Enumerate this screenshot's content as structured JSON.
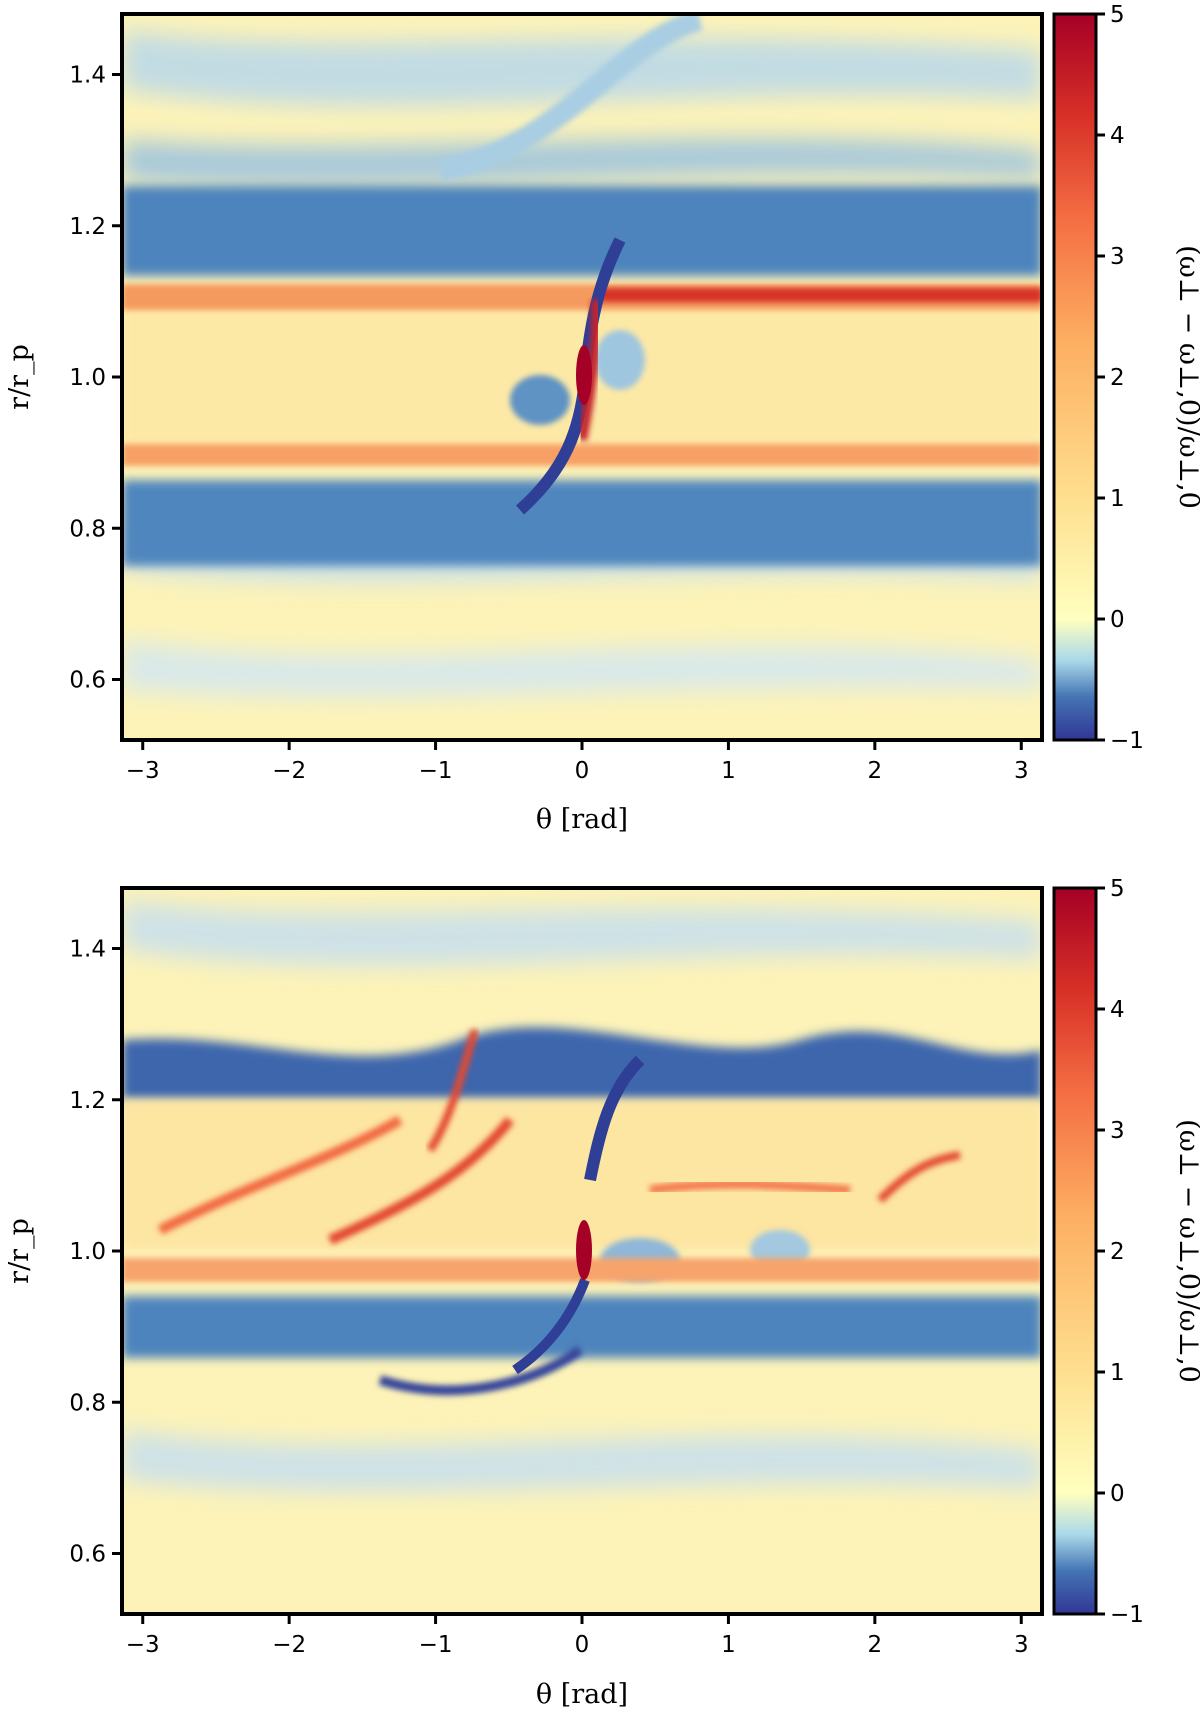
{
  "chart_data": [
    {
      "type": "heatmap",
      "panel": "top",
      "title": "",
      "xlabel": "θ [rad]",
      "ylabel": "r/r_p",
      "xlim": [
        -3.14159,
        3.14159
      ],
      "ylim": [
        0.52,
        1.48
      ],
      "xticks": [
        -3,
        -2,
        -1,
        0,
        1,
        2,
        3
      ],
      "xtick_labels": [
        "−3",
        "−2",
        "−1",
        "0",
        "1",
        "2",
        "3"
      ],
      "yticks": [
        0.6,
        0.8,
        1.0,
        1.2,
        1.4
      ],
      "ytick_labels": [
        "0.6",
        "0.8",
        "1.0",
        "1.2",
        "1.4"
      ],
      "colorbar": {
        "label": "(ω⊥ − ω⊥,0)/ω⊥,0",
        "range": [
          -1,
          5
        ],
        "ticks": [
          -1,
          0,
          1,
          2,
          3,
          4,
          5
        ],
        "tick_labels": [
          "−1",
          "0",
          "1",
          "2",
          "3",
          "4",
          "5"
        ],
        "colormap": "RdYlBu_r (diverging, centered at 0)",
        "colors": {
          "low": "#313695",
          "mid": "#ffffbf",
          "high": "#a50026"
        }
      },
      "features": [
        {
          "name": "outer ring",
          "r": 1.11,
          "value": 2.6,
          "theta_range": [
            -3.14,
            3.14
          ],
          "peak_value": 4.2
        },
        {
          "name": "inner ring",
          "r": 0.89,
          "value": 2.3,
          "theta_range": [
            -3.14,
            3.14
          ]
        },
        {
          "name": "outer depleted band",
          "r_range": [
            1.14,
            1.26
          ],
          "value": -0.7
        },
        {
          "name": "inner depleted band",
          "r_range": [
            0.75,
            0.87
          ],
          "value": -0.7
        },
        {
          "name": "planet core",
          "theta": 0,
          "r": 1.0,
          "value": 5
        }
      ],
      "grid": false
    },
    {
      "type": "heatmap",
      "panel": "bottom",
      "title": "",
      "xlabel": "θ [rad]",
      "ylabel": "r/r_p",
      "xlim": [
        -3.14159,
        3.14159
      ],
      "ylim": [
        0.52,
        1.48
      ],
      "xticks": [
        -3,
        -2,
        -1,
        0,
        1,
        2,
        3
      ],
      "xtick_labels": [
        "−3",
        "−2",
        "−1",
        "0",
        "1",
        "2",
        "3"
      ],
      "yticks": [
        0.6,
        0.8,
        1.0,
        1.2,
        1.4
      ],
      "ytick_labels": [
        "0.6",
        "0.8",
        "1.0",
        "1.2",
        "1.4"
      ],
      "colorbar": {
        "label": "(ω⊥ − ω⊥,0)/ω⊥,0",
        "range": [
          -1,
          5
        ],
        "ticks": [
          -1,
          0,
          1,
          2,
          3,
          4,
          5
        ],
        "tick_labels": [
          "−1",
          "0",
          "1",
          "2",
          "3",
          "4",
          "5"
        ],
        "colormap": "RdYlBu_r (diverging, centered at 0)",
        "colors": {
          "low": "#313695",
          "mid": "#ffffbf",
          "high": "#a50026"
        }
      },
      "features": [
        {
          "name": "outer depleted band",
          "r_range": [
            1.13,
            1.23
          ],
          "value": -0.8
        },
        {
          "name": "inner depleted band",
          "r_range": [
            0.78,
            0.86
          ],
          "value": -0.8
        },
        {
          "name": "inner ring",
          "r": 0.89,
          "value": 1.9
        },
        {
          "name": "turbulent vortex filaments",
          "r_range": [
            0.9,
            1.14
          ],
          "value": 2.5
        },
        {
          "name": "planet core",
          "theta": 0,
          "r": 1.0,
          "value": 5
        }
      ],
      "grid": false
    }
  ]
}
